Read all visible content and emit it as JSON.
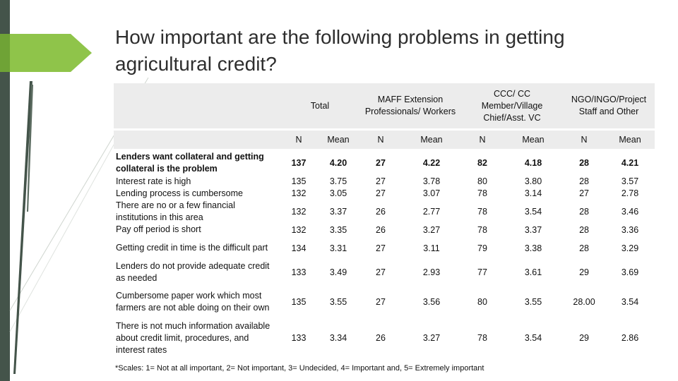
{
  "title": "How important are the following problems in getting agricultural credit?",
  "table": {
    "groups": [
      "Total",
      "MAFF Extension Professionals/ Workers",
      "CCC/ CC Member/Village Chief/Asst. VC",
      "NGO/INGO/Project Staff and Other"
    ],
    "subheaders": [
      "N",
      "Mean",
      "N",
      "Mean",
      "N",
      "Mean",
      "N",
      "Mean"
    ],
    "rows": [
      {
        "label": "Lenders want collateral and getting collateral is the problem",
        "values": [
          "137",
          "4.20",
          "27",
          "4.22",
          "82",
          "4.18",
          "28",
          "4.21"
        ]
      },
      {
        "label": "Interest rate is high",
        "values": [
          "135",
          "3.75",
          "27",
          "3.78",
          "80",
          "3.80",
          "28",
          "3.57"
        ]
      },
      {
        "label": "Lending process is cumbersome",
        "values": [
          "132",
          "3.05",
          "27",
          "3.07",
          "78",
          "3.14",
          "27",
          "2.78"
        ]
      },
      {
        "label": "There are no or a few financial institutions in this area",
        "values": [
          "132",
          "3.37",
          "26",
          "2.77",
          "78",
          "3.54",
          "28",
          "3.46"
        ]
      },
      {
        "label": "Pay off period is short",
        "values": [
          "132",
          "3.35",
          "26",
          "3.27",
          "78",
          "3.37",
          "28",
          "3.36"
        ]
      },
      {
        "label": "Getting credit in time is the difficult part",
        "values": [
          "134",
          "3.31",
          "27",
          "3.11",
          "79",
          "3.38",
          "28",
          "3.29"
        ]
      },
      {
        "label": "Lenders do not provide adequate credit as needed",
        "values": [
          "133",
          "3.49",
          "27",
          "2.93",
          "77",
          "3.61",
          "29",
          "3.69"
        ]
      },
      {
        "label": "Cumbersome paper work which most farmers are not able doing on their own",
        "values": [
          "135",
          "3.55",
          "27",
          "3.56",
          "80",
          "3.55",
          "28.00",
          "3.54"
        ]
      },
      {
        "label": "There is not much information available about credit limit, procedures, and interest rates",
        "values": [
          "133",
          "3.34",
          "26",
          "3.27",
          "78",
          "3.54",
          "29",
          "2.86"
        ]
      }
    ]
  },
  "footnote": "*Scales: 1= Not at all important, 2= Not important, 3= Undecided, 4= Important and, 5= Extremely important",
  "colors": {
    "sidebar": "#44544a",
    "accent_green": "#8fc44a",
    "header_bg": "#ececec"
  }
}
